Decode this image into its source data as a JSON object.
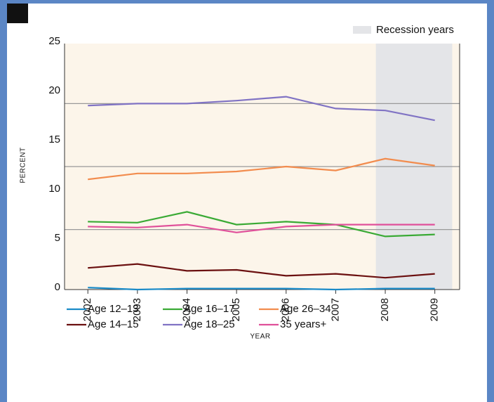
{
  "chart_data": {
    "type": "line",
    "x": [
      2002,
      2003,
      2004,
      2005,
      2006,
      2007,
      2008,
      2009
    ],
    "xlim": [
      2001.53,
      2009.5
    ],
    "xticks": [
      2002,
      2003,
      2004,
      2005,
      2006,
      2007,
      2008,
      2009
    ],
    "ylim": [
      0,
      25
    ],
    "yticks": [
      0,
      5,
      10,
      15,
      20,
      25
    ],
    "x_label": "YEAR",
    "y_label": "PERCENT",
    "recession": {
      "label": "Recession years",
      "x": [
        2007.81,
        2009.35
      ],
      "color": "#e4e5e8"
    },
    "reference_lines": [
      18.9,
      12.5,
      6.1
    ],
    "series": [
      {
        "name": "Age 12–13",
        "color": "#1b8bc8",
        "values": [
          0.2,
          0,
          0.1,
          0.1,
          0.1,
          0,
          0.1,
          0.1
        ]
      },
      {
        "name": "Age 14–15",
        "color": "#6b1010",
        "values": [
          2.2,
          2.6,
          1.9,
          2.0,
          1.4,
          1.6,
          1.2,
          1.6
        ]
      },
      {
        "name": "Age 16–17",
        "color": "#3aaa35",
        "values": [
          6.9,
          6.8,
          7.9,
          6.6,
          6.9,
          6.6,
          5.4,
          5.6
        ]
      },
      {
        "name": "Age 18–25",
        "color": "#8073c4",
        "values": [
          18.7,
          18.9,
          18.9,
          19.2,
          19.6,
          18.4,
          18.2,
          17.2
        ]
      },
      {
        "name": "Age 26–34",
        "color": "#f28c4e",
        "values": [
          11.2,
          11.8,
          11.8,
          12.0,
          12.5,
          12.1,
          13.3,
          12.6
        ]
      },
      {
        "name": "35 years+",
        "color": "#e0509a",
        "values": [
          6.4,
          6.3,
          6.6,
          5.8,
          6.4,
          6.6,
          6.6,
          6.6
        ]
      }
    ]
  }
}
